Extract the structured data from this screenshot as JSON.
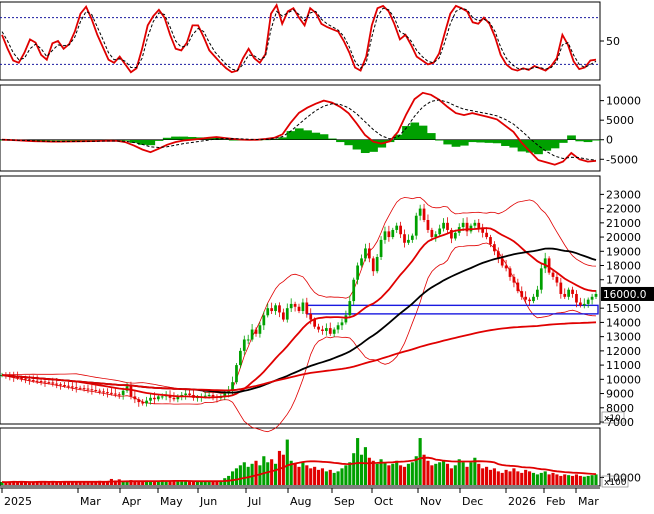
{
  "chart_data": {
    "type": "multi-panel stock chart",
    "x_axis": {
      "labels": [
        "2025",
        "Mar",
        "Apr",
        "May",
        "Jun",
        "Jul",
        "Aug",
        "Sep",
        "Oct",
        "Nov",
        "Dec",
        "2026",
        "Feb",
        "Mar"
      ]
    },
    "panels": [
      {
        "id": "stochastic",
        "type": "line",
        "ylim": [
          0,
          100
        ],
        "ticks": [
          50
        ],
        "reference_lines": [
          80,
          20
        ],
        "series": [
          {
            "role": "main",
            "color": "#e00000",
            "values": [
              58,
              40,
              25,
              22,
              35,
              52,
              48,
              32,
              26,
              47,
              50,
              40,
              46,
              62,
              85,
              94,
              78,
              58,
              42,
              26,
              22,
              30,
              20,
              10,
              15,
              40,
              70,
              82,
              90,
              80,
              58,
              40,
              38,
              48,
              70,
              70,
              55,
              38,
              30,
              22,
              15,
              10,
              12,
              28,
              40,
              28,
              22,
              33,
              85,
              96,
              72,
              88,
              92,
              80,
              70,
              92,
              86,
              72,
              68,
              65,
              62,
              50,
              35,
              16,
              12,
              30,
              70,
              92,
              95,
              88,
              72,
              52,
              58,
              45,
              30,
              25,
              20,
              22,
              34,
              60,
              85,
              95,
              92,
              88,
              74,
              72,
              80,
              72,
              55,
              32,
              20,
              14,
              12,
              15,
              13,
              18,
              15,
              12,
              18,
              28,
              58,
              45,
              24,
              14,
              16,
              25,
              26
            ]
          },
          {
            "role": "signal",
            "color": "#000000",
            "dash": true,
            "values": [
              62,
              50,
              35,
              26,
              28,
              40,
              46,
              40,
              30,
              38,
              45,
              44,
              45,
              55,
              75,
              88,
              84,
              68,
              52,
              35,
              26,
              27,
              24,
              16,
              16,
              28,
              55,
              75,
              86,
              84,
              68,
              50,
              42,
              44,
              58,
              66,
              62,
              48,
              36,
              28,
              20,
              14,
              12,
              20,
              32,
              31,
              26,
              30,
              65,
              88,
              82,
              86,
              90,
              84,
              76,
              86,
              88,
              78,
              72,
              68,
              64,
              56,
              42,
              24,
              15,
              22,
              55,
              82,
              92,
              90,
              80,
              62,
              58,
              50,
              38,
              30,
              24,
              22,
              28,
              48,
              72,
              88,
              92,
              90,
              80,
              76,
              78,
              74,
              62,
              42,
              28,
              20,
              15,
              14,
              14,
              16,
              16,
              14,
              16,
              24,
              45,
              48,
              32,
              20,
              16,
              20,
              24
            ]
          }
        ]
      },
      {
        "id": "macd",
        "type": "line",
        "ylim": [
          -8000,
          14000
        ],
        "ticks": [
          10000,
          5000,
          0,
          -5000
        ],
        "series": [
          {
            "role": "macd",
            "color": "#e00000",
            "values": [
              0,
              -80,
              -180,
              -280,
              -380,
              -420,
              -470,
              -490,
              -460,
              -420,
              -370,
              -350,
              -300,
              -260,
              -300,
              -650,
              -1500,
              -2500,
              -3200,
              -2300,
              -1300,
              -600,
              -200,
              0,
              200,
              500,
              700,
              450,
              200,
              20,
              -50,
              0,
              200,
              500,
              1400,
              4400,
              6900,
              8200,
              9200,
              10000,
              9500,
              8400,
              6800,
              4100,
              1200,
              -500,
              -1000,
              -400,
              2000,
              6500,
              10400,
              12000,
              11500,
              10200,
              8400,
              6800,
              6300,
              6800,
              6300,
              5800,
              5200,
              3600,
              2000,
              -800,
              -3000,
              -5200,
              -5800,
              -6400,
              -5600,
              -3400,
              -5000,
              -5600,
              -5400
            ]
          },
          {
            "role": "signal",
            "color": "#000000",
            "dash": true,
            "values": [
              0,
              -50,
              -120,
              -200,
              -280,
              -340,
              -390,
              -430,
              -440,
              -430,
              -410,
              -390,
              -360,
              -330,
              -320,
              -400,
              -700,
              -1200,
              -1800,
              -2000,
              -1800,
              -1400,
              -1000,
              -700,
              -400,
              -100,
              200,
              300,
              300,
              200,
              100,
              60,
              100,
              300,
              800,
              2200,
              4000,
              5800,
              7400,
              8600,
              9200,
              9000,
              8200,
              6600,
              4600,
              2600,
              1000,
              200,
              700,
              3000,
              6000,
              8400,
              9800,
              10200,
              9600,
              8600,
              7800,
              7400,
              7000,
              6600,
              6100,
              5200,
              4000,
              2200,
              300,
              -1500,
              -3000,
              -4200,
              -4800,
              -4500,
              -4600,
              -5000,
              -5200
            ]
          },
          {
            "role": "histogram",
            "color": "#00a000",
            "values": [
              0,
              -30,
              -60,
              -80,
              -100,
              -80,
              -80,
              -60,
              -20,
              10,
              40,
              40,
              60,
              70,
              20,
              -250,
              -800,
              -1300,
              -1400,
              -300,
              500,
              800,
              800,
              700,
              600,
              600,
              500,
              150,
              -100,
              -180,
              -150,
              -60,
              100,
              200,
              600,
              2200,
              2900,
              2400,
              1800,
              1400,
              300,
              -600,
              -1400,
              -2500,
              -3400,
              -3100,
              -2000,
              -600,
              1300,
              3500,
              4400,
              3600,
              1700,
              0,
              -1200,
              -1800,
              -1500,
              -600,
              -700,
              -800,
              -900,
              -1600,
              -2000,
              -3000,
              -3300,
              -3700,
              -2800,
              -2200,
              -800,
              1100,
              -400,
              -600,
              -200
            ]
          }
        ]
      },
      {
        "id": "price",
        "type": "candlestick",
        "ylim": [
          7000,
          23800
        ],
        "ticks": [
          23000,
          22000,
          21000,
          20000,
          19000,
          18000,
          17000,
          15000,
          14000,
          13000,
          12000,
          11000,
          10000,
          9000,
          8000,
          7000
        ],
        "last_price_label": "16000.0",
        "axis_multiplier_label": "x10",
        "close": [
          10300,
          10250,
          10200,
          10150,
          10100,
          10050,
          10000,
          9950,
          9900,
          9880,
          9850,
          9800,
          9780,
          9700,
          9650,
          9600,
          9550,
          9500,
          9450,
          9400,
          9380,
          9350,
          9300,
          9250,
          9200,
          9150,
          9100,
          9050,
          9000,
          8950,
          8900,
          9200,
          9500,
          8800,
          8600,
          8400,
          8300,
          8500,
          8700,
          8600,
          8800,
          8800,
          8900,
          8700,
          8600,
          8800,
          8900,
          9000,
          8900,
          8700,
          8750,
          8800,
          8850,
          8900,
          8800,
          8700,
          8750,
          9000,
          9200,
          9800,
          11000,
          12000,
          12800,
          12800,
          13500,
          13200,
          13800,
          14500,
          15000,
          14800,
          15200,
          14700,
          14200,
          15000,
          15300,
          15100,
          14800,
          15400,
          14600,
          14200,
          13700,
          13500,
          13400,
          13600,
          13200,
          13500,
          13800,
          14000,
          14500,
          15500,
          17000,
          18000,
          18500,
          19200,
          18500,
          17600,
          18600,
          19800,
          20400,
          20000,
          20500,
          20800,
          20200,
          19600,
          19800,
          20100,
          21500,
          22000,
          21200,
          20500,
          20000,
          20200,
          20600,
          21000,
          20500,
          19900,
          20300,
          20700,
          21000,
          20400,
          20800,
          21000,
          20600,
          20300,
          20000,
          19500,
          19000,
          18500,
          18000,
          17800,
          17200,
          16800,
          16200,
          15800,
          15600,
          15500,
          15800,
          16300,
          17800,
          18500,
          17500,
          17200,
          16800,
          16000,
          15800,
          16300,
          16000,
          15400,
          15200,
          15300,
          15600,
          15800,
          16000
        ]
      },
      {
        "id": "volume",
        "type": "bar",
        "ylim": [
          0,
          70000
        ],
        "ticks": [
          10000
        ],
        "axis_multiplier_label": "x100",
        "values": [
          4000,
          3500,
          4200,
          5000,
          3800,
          4500,
          4000,
          3200,
          3800,
          4600,
          5200,
          4400,
          3700,
          4800,
          3500,
          4300,
          5100,
          4000,
          3600,
          4900,
          4500,
          3900,
          4700,
          4100,
          3800,
          5500,
          4200,
          4600,
          8000,
          6000,
          7500,
          5000,
          4500,
          6500,
          4800,
          5200,
          4000,
          6000,
          4500,
          5500,
          4800,
          6200,
          4500,
          5000,
          4700,
          5800,
          4600,
          5100,
          4800,
          5200,
          4900,
          4700,
          5300,
          5000,
          4800,
          5200,
          6000,
          9000,
          12000,
          18000,
          22000,
          26000,
          30000,
          24000,
          28000,
          32000,
          26000,
          38000,
          30000,
          34000,
          28000,
          45000,
          40000,
          60000,
          32000,
          28000,
          24000,
          30000,
          26000,
          22000,
          24000,
          20000,
          22000,
          18000,
          20000,
          16000,
          18000,
          22000,
          26000,
          30000,
          42000,
          62000,
          40000,
          50000,
          36000,
          32000,
          28000,
          34000,
          30000,
          26000,
          28000,
          32000,
          26000,
          24000,
          28000,
          30000,
          38000,
          62000,
          40000,
          32000,
          26000,
          28000,
          30000,
          32000,
          28000,
          22000,
          26000,
          34000,
          30000,
          24000,
          30000,
          36000,
          28000,
          22000,
          24000,
          20000,
          22000,
          18000,
          16000,
          20000,
          18000,
          22000,
          18000,
          16000,
          20000,
          18000,
          16000,
          14000,
          16000,
          18000,
          14000,
          16000,
          14000,
          12000,
          14000,
          13000,
          12000,
          14000,
          12000,
          11000,
          12000,
          13000,
          14000
        ]
      }
    ]
  }
}
